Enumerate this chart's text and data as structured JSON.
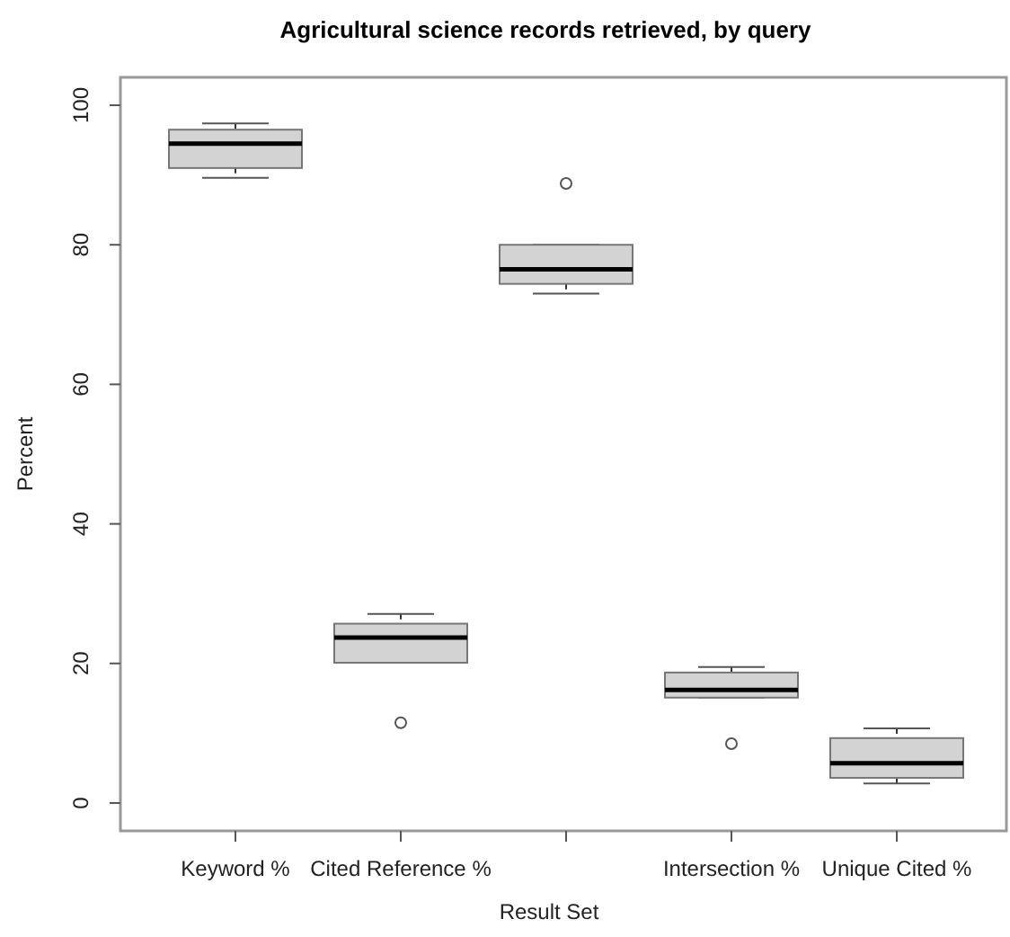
{
  "chart_data": {
    "type": "box",
    "title": "Agricultural science records retrieved, by query",
    "xlabel": "Result Set",
    "ylabel": "Percent",
    "categories": [
      "Keyword %",
      "Cited Reference %",
      null,
      "Intersection %",
      "Unique Cited %"
    ],
    "ylim": [
      -4,
      104
    ],
    "yticks": [
      0,
      20,
      40,
      60,
      80,
      100
    ],
    "grid": false,
    "color": "#d3d3d3",
    "boxes": [
      {
        "low": 89.6,
        "q1": 91.0,
        "median": 94.5,
        "q3": 96.5,
        "high": 97.4
      },
      {
        "low": 20.1,
        "q1": 20.1,
        "median": 23.7,
        "q3": 25.7,
        "high": 27.1,
        "outliers": [
          11.5
        ]
      },
      {
        "low": 73.0,
        "q1": 74.4,
        "median": 76.5,
        "q3": 80.0,
        "high": 80.0,
        "outliers": [
          88.8
        ]
      },
      {
        "low": 15.1,
        "q1": 15.1,
        "median": 16.2,
        "q3": 18.7,
        "high": 19.5,
        "outliers": [
          8.5
        ]
      },
      {
        "low": 2.8,
        "q1": 3.6,
        "median": 5.7,
        "q3": 9.3,
        "high": 10.7
      }
    ]
  }
}
